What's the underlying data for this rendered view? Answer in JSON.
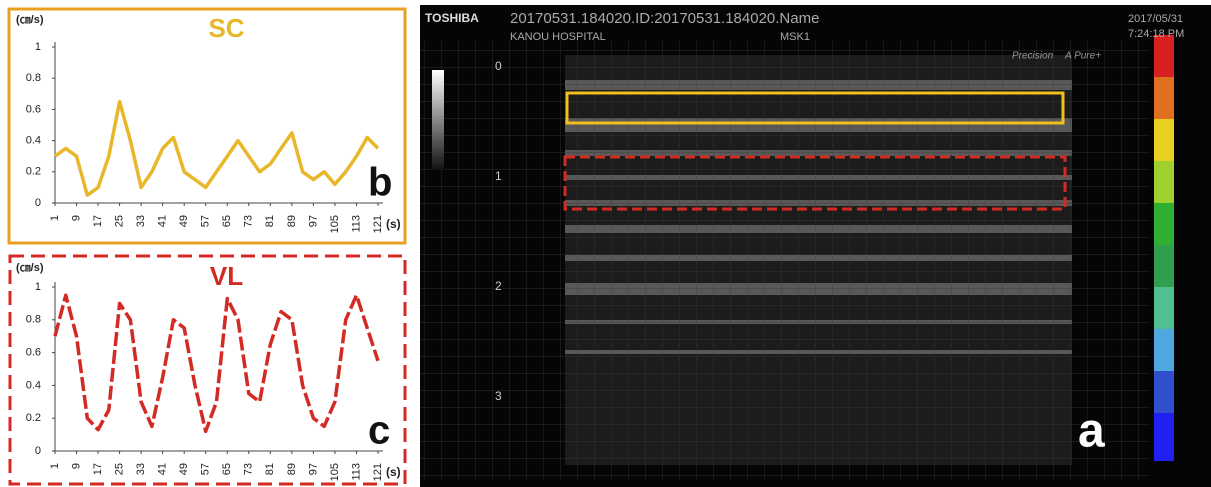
{
  "chart_data": [
    {
      "type": "line",
      "title": "SC",
      "y_label": "(㎝/s)",
      "x_label": "(s)",
      "panel": "b",
      "color": "#e8b72a",
      "x": [
        1,
        5,
        9,
        13,
        17,
        21,
        25,
        29,
        33,
        37,
        41,
        45,
        49,
        53,
        57,
        61,
        65,
        69,
        73,
        77,
        81,
        85,
        89,
        93,
        97,
        101,
        105,
        109,
        113,
        117,
        121
      ],
      "values": [
        0.3,
        0.35,
        0.3,
        0.05,
        0.1,
        0.3,
        0.65,
        0.4,
        0.1,
        0.2,
        0.35,
        0.42,
        0.2,
        0.15,
        0.1,
        0.2,
        0.3,
        0.4,
        0.3,
        0.2,
        0.25,
        0.35,
        0.45,
        0.2,
        0.15,
        0.2,
        0.12,
        0.2,
        0.3,
        0.42,
        0.35
      ],
      "xlim": [
        1,
        121
      ],
      "xticks": [
        1,
        9,
        17,
        25,
        33,
        41,
        49,
        57,
        65,
        73,
        81,
        89,
        97,
        105,
        113,
        121
      ],
      "ylim": [
        0,
        1
      ],
      "yticks": [
        0,
        0.2,
        0.4,
        0.6,
        0.8,
        1
      ],
      "dashed": false
    },
    {
      "type": "line",
      "title": "VL",
      "y_label": "(㎝/s)",
      "x_label": "(s)",
      "panel": "c",
      "color": "#d42a24",
      "x": [
        1,
        5,
        9,
        13,
        17,
        21,
        25,
        29,
        33,
        37,
        41,
        45,
        49,
        53,
        57,
        61,
        65,
        69,
        73,
        77,
        81,
        85,
        89,
        93,
        97,
        101,
        105,
        109,
        113,
        117,
        121
      ],
      "values": [
        0.7,
        0.95,
        0.7,
        0.2,
        0.13,
        0.25,
        0.9,
        0.8,
        0.3,
        0.15,
        0.45,
        0.8,
        0.75,
        0.4,
        0.12,
        0.3,
        0.93,
        0.8,
        0.35,
        0.3,
        0.65,
        0.85,
        0.8,
        0.4,
        0.2,
        0.15,
        0.3,
        0.8,
        0.95,
        0.75,
        0.55
      ],
      "xlim": [
        1,
        121
      ],
      "xticks": [
        1,
        9,
        17,
        25,
        33,
        41,
        49,
        57,
        65,
        73,
        81,
        89,
        97,
        105,
        113,
        121
      ],
      "ylim": [
        0,
        1
      ],
      "yticks": [
        0,
        0.2,
        0.4,
        0.6,
        0.8,
        1
      ],
      "dashed": true
    }
  ],
  "image": {
    "brand": "TOSHIBA",
    "id_line": "20170531.184020.ID:20170531.184020.Name",
    "hospital": "KANOU HOSPITAL",
    "preset": "MSK1",
    "date": "2017/05/31",
    "time": "7:24:18 PM",
    "mode": "Precision",
    "filter": "A Pure+",
    "depth_labels": [
      "0",
      "1",
      "2",
      "3"
    ],
    "panel": "a"
  }
}
